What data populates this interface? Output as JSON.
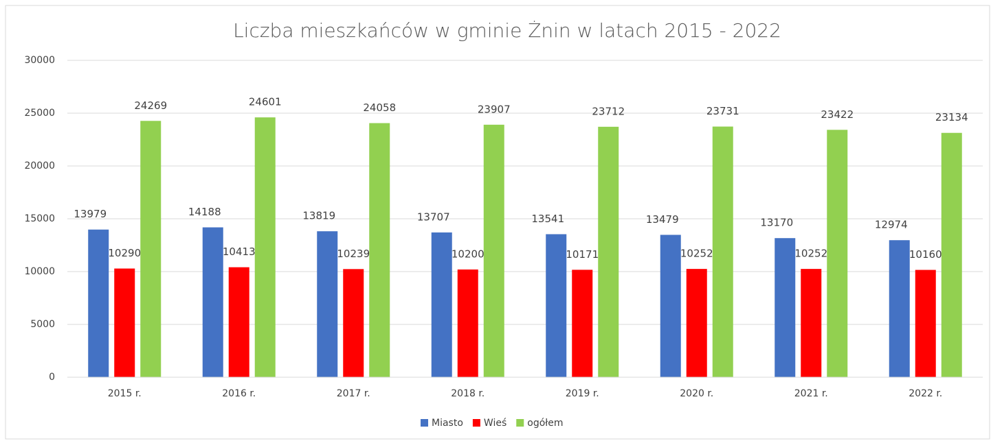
{
  "chart_data": {
    "type": "bar",
    "title": "Liczba mieszkańców w gminie Żnin w latach 2015 - 2022",
    "categories": [
      "2015 r.",
      "2016 r.",
      "2017 r.",
      "2018 r.",
      "2019 r.",
      "2020 r.",
      "2021 r.",
      "2022 r."
    ],
    "series": [
      {
        "name": "Miasto",
        "color": "#4472c4",
        "values": [
          13979,
          14188,
          13819,
          13707,
          13541,
          13479,
          13170,
          12974
        ]
      },
      {
        "name": "Wieś",
        "color": "#ff0000",
        "values": [
          10290,
          10413,
          10239,
          10200,
          10171,
          10252,
          10252,
          10160
        ]
      },
      {
        "name": "ogółem",
        "color": "#92d050",
        "values": [
          24269,
          24601,
          24058,
          23907,
          23712,
          23731,
          23422,
          23134
        ]
      }
    ],
    "ylim": [
      0,
      30000
    ],
    "yticks": [
      0,
      5000,
      10000,
      15000,
      20000,
      25000,
      30000
    ],
    "grid": true,
    "legend": "bottom"
  }
}
